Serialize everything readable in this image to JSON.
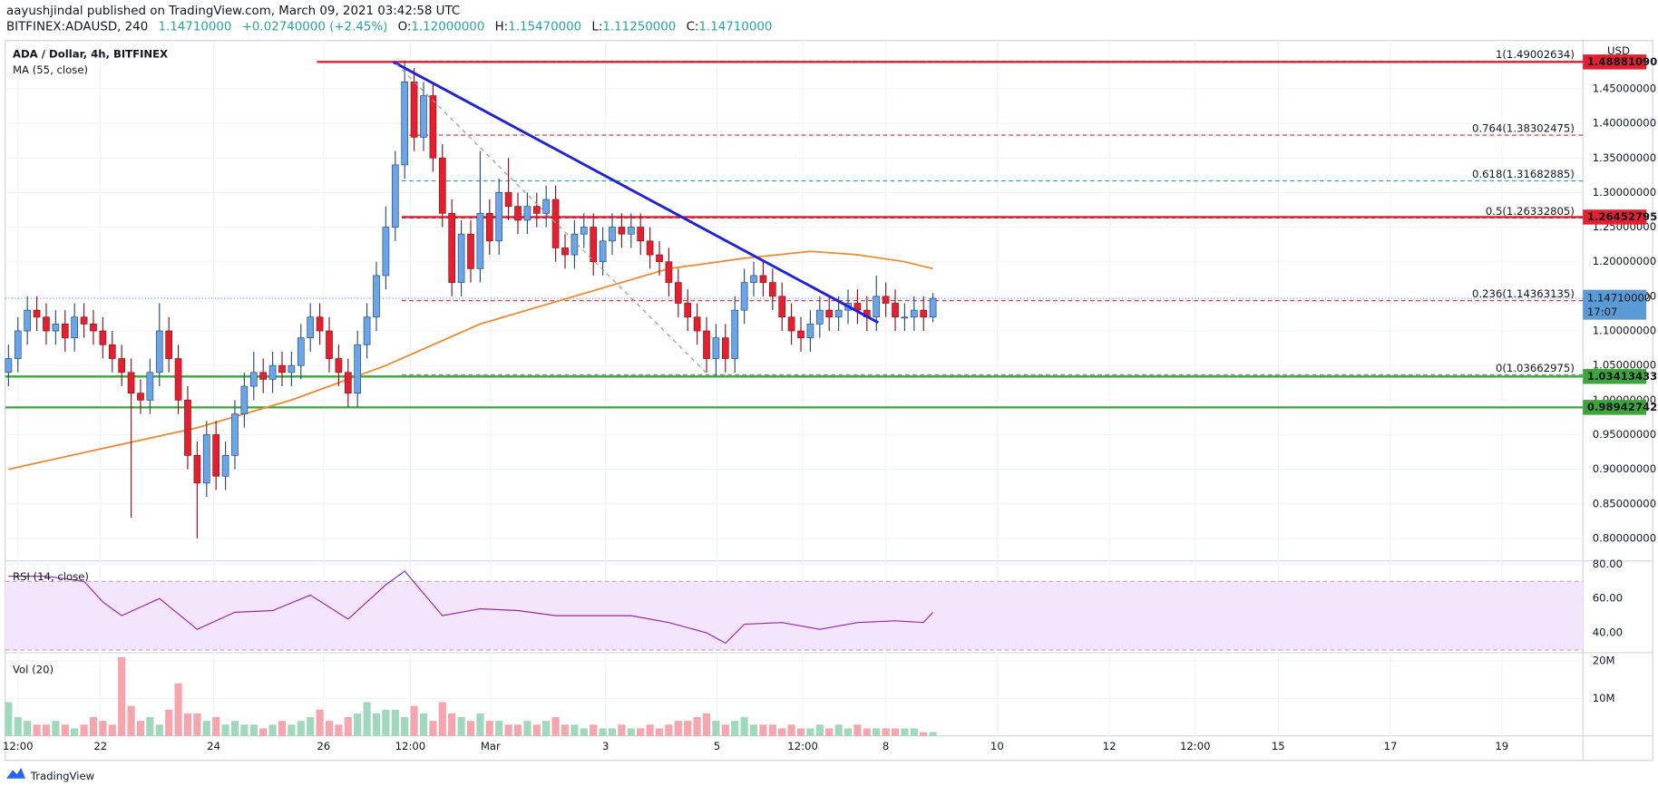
{
  "header": {
    "publisher": "aayushjindal published on TradingView.com, March 09, 2021 03:42:58 UTC",
    "symbol": "BITFINEX:ADAUSD, 240",
    "last": "1.14710000",
    "change": "+0.02740000 (+2.45%)",
    "ohlc": [
      {
        "label": "O:",
        "value": "1.12000000"
      },
      {
        "label": "H:",
        "value": "1.15470000"
      },
      {
        "label": "L:",
        "value": "1.11250000"
      },
      {
        "label": "C:",
        "value": "1.14710000"
      }
    ]
  },
  "chart_data": [
    {
      "type": "candlestick",
      "title": "ADA / Dollar, 4h, BITFINEX",
      "unit": "USD",
      "up_color": "#6ba5e7",
      "down_color": "#e3202f",
      "xlim": [
        -0.34,
        166.9
      ],
      "xticks": [
        {
          "value": 1,
          "label": "12:00"
        },
        {
          "value": 9.75,
          "label": "22"
        },
        {
          "value": 21.75,
          "label": "24"
        },
        {
          "value": 33.4,
          "label": "26"
        },
        {
          "value": 42.6,
          "label": "12:00"
        },
        {
          "value": 51.1,
          "label": "Mar"
        },
        {
          "value": 63.3,
          "label": "3"
        },
        {
          "value": 75.1,
          "label": "5"
        },
        {
          "value": 84.2,
          "label": "12:00"
        },
        {
          "value": 93,
          "label": "8"
        },
        {
          "value": 104.8,
          "label": "10"
        },
        {
          "value": 116.7,
          "label": "12"
        },
        {
          "value": 125.8,
          "label": "12:00"
        },
        {
          "value": 134.6,
          "label": "15"
        },
        {
          "value": 146.5,
          "label": "17"
        },
        {
          "value": 158.3,
          "label": "19"
        }
      ],
      "ylim": [
        0.7674,
        1.5198
      ],
      "yticks": [
        {
          "value": 0.8,
          "label": "0.80000000"
        },
        {
          "value": 0.85,
          "label": "0.85000000"
        },
        {
          "value": 0.9,
          "label": "0.90000000"
        },
        {
          "value": 0.95,
          "label": "0.95000000"
        },
        {
          "value": 1.0,
          "label": "1.00000000"
        },
        {
          "value": 1.05,
          "label": "1.05000000"
        },
        {
          "value": 1.1,
          "label": "1.10000000"
        },
        {
          "value": 1.15,
          "label": "1.15000000"
        },
        {
          "value": 1.2,
          "label": "1.20000000"
        },
        {
          "value": 1.25,
          "label": "1.25000000"
        },
        {
          "value": 1.3,
          "label": "1.30000000"
        },
        {
          "value": 1.35,
          "label": "1.35000000"
        },
        {
          "value": 1.4,
          "label": "1.40000000"
        },
        {
          "value": 1.45,
          "label": "1.45000000"
        }
      ],
      "open": [
        1.04,
        1.06,
        1.1,
        1.13,
        1.12,
        1.1,
        1.11,
        1.09,
        1.12,
        1.11,
        1.1,
        1.08,
        1.06,
        1.04,
        1.01,
        1.0,
        1.04,
        1.1,
        1.06,
        1.0,
        0.92,
        0.88,
        0.95,
        0.89,
        0.92,
        0.98,
        1.02,
        1.04,
        1.03,
        1.05,
        1.04,
        1.05,
        1.09,
        1.12,
        1.1,
        1.06,
        1.04,
        1.01,
        1.08,
        1.12,
        1.18,
        1.25,
        1.34,
        1.46,
        1.38,
        1.44,
        1.35,
        1.27,
        1.17,
        1.24,
        1.19,
        1.27,
        1.23,
        1.3,
        1.28,
        1.26,
        1.28,
        1.27,
        1.29,
        1.22,
        1.21,
        1.24,
        1.25,
        1.2,
        1.23,
        1.25,
        1.24,
        1.25,
        1.23,
        1.21,
        1.2,
        1.17,
        1.14,
        1.12,
        1.1,
        1.06,
        1.09,
        1.06,
        1.13,
        1.17,
        1.18,
        1.17,
        1.15,
        1.12,
        1.1,
        1.09,
        1.11,
        1.13,
        1.12,
        1.13,
        1.14,
        1.13,
        1.12,
        1.15,
        1.14,
        1.12,
        1.12,
        1.13,
        1.12
      ],
      "high": [
        1.08,
        1.12,
        1.15,
        1.15,
        1.14,
        1.13,
        1.13,
        1.14,
        1.14,
        1.13,
        1.12,
        1.1,
        1.08,
        1.06,
        1.03,
        1.06,
        1.14,
        1.12,
        1.08,
        1.02,
        0.94,
        0.97,
        0.97,
        0.94,
        1.0,
        1.04,
        1.07,
        1.06,
        1.07,
        1.07,
        1.07,
        1.11,
        1.14,
        1.14,
        1.12,
        1.08,
        1.06,
        1.1,
        1.14,
        1.2,
        1.28,
        1.36,
        1.49,
        1.48,
        1.46,
        1.46,
        1.37,
        1.29,
        1.26,
        1.26,
        1.36,
        1.29,
        1.32,
        1.35,
        1.3,
        1.3,
        1.3,
        1.31,
        1.31,
        1.24,
        1.26,
        1.27,
        1.27,
        1.25,
        1.27,
        1.27,
        1.27,
        1.27,
        1.25,
        1.23,
        1.22,
        1.19,
        1.16,
        1.14,
        1.12,
        1.11,
        1.11,
        1.15,
        1.19,
        1.2,
        1.2,
        1.19,
        1.17,
        1.14,
        1.12,
        1.13,
        1.15,
        1.15,
        1.15,
        1.16,
        1.16,
        1.15,
        1.18,
        1.17,
        1.16,
        1.14,
        1.15,
        1.15,
        1.1547
      ],
      "low": [
        1.02,
        1.04,
        1.08,
        1.1,
        1.08,
        1.08,
        1.07,
        1.07,
        1.09,
        1.08,
        1.06,
        1.04,
        1.02,
        0.83,
        0.98,
        0.98,
        1.02,
        1.04,
        0.98,
        0.9,
        0.8,
        0.86,
        0.87,
        0.87,
        0.9,
        0.96,
        1.0,
        1.01,
        1.01,
        1.02,
        1.02,
        1.03,
        1.07,
        1.08,
        1.04,
        1.02,
        0.99,
        0.99,
        1.06,
        1.1,
        1.16,
        1.23,
        1.32,
        1.36,
        1.36,
        1.33,
        1.25,
        1.15,
        1.15,
        1.17,
        1.17,
        1.21,
        1.21,
        1.26,
        1.24,
        1.24,
        1.25,
        1.25,
        1.2,
        1.19,
        1.19,
        1.22,
        1.18,
        1.18,
        1.21,
        1.22,
        1.22,
        1.21,
        1.19,
        1.18,
        1.15,
        1.12,
        1.1,
        1.08,
        1.04,
        1.035,
        1.04,
        1.04,
        1.11,
        1.15,
        1.15,
        1.13,
        1.1,
        1.08,
        1.07,
        1.07,
        1.09,
        1.1,
        1.1,
        1.11,
        1.11,
        1.1,
        1.1,
        1.12,
        1.1,
        1.1,
        1.1,
        1.1,
        1.1125
      ],
      "close": [
        1.06,
        1.1,
        1.13,
        1.12,
        1.1,
        1.11,
        1.09,
        1.12,
        1.11,
        1.1,
        1.08,
        1.06,
        1.04,
        1.01,
        1.0,
        1.04,
        1.1,
        1.06,
        1.0,
        0.92,
        0.88,
        0.95,
        0.89,
        0.92,
        0.98,
        1.02,
        1.04,
        1.03,
        1.05,
        1.04,
        1.05,
        1.09,
        1.12,
        1.1,
        1.06,
        1.04,
        1.01,
        1.08,
        1.12,
        1.18,
        1.25,
        1.34,
        1.46,
        1.38,
        1.44,
        1.35,
        1.27,
        1.17,
        1.24,
        1.19,
        1.27,
        1.23,
        1.3,
        1.28,
        1.26,
        1.28,
        1.27,
        1.29,
        1.22,
        1.21,
        1.24,
        1.25,
        1.2,
        1.23,
        1.25,
        1.24,
        1.25,
        1.23,
        1.21,
        1.2,
        1.17,
        1.14,
        1.12,
        1.1,
        1.06,
        1.09,
        1.06,
        1.13,
        1.17,
        1.18,
        1.17,
        1.15,
        1.12,
        1.1,
        1.09,
        1.11,
        1.13,
        1.12,
        1.13,
        1.14,
        1.13,
        1.12,
        1.15,
        1.14,
        1.12,
        1.12,
        1.13,
        1.12,
        1.1471
      ],
      "ma": {
        "name": "MA (55, close)",
        "color": "#f0892e",
        "x": [
          0,
          10,
          20,
          30,
          40,
          50,
          60,
          70,
          78,
          85,
          90,
          95,
          98
        ],
        "values": [
          0.9,
          0.93,
          0.96,
          1.0,
          1.05,
          1.11,
          1.15,
          1.19,
          1.205,
          1.215,
          1.21,
          1.2,
          1.19
        ]
      },
      "levels": [
        {
          "value": 1.4888109,
          "label": "1.48881090",
          "color": "#e3202f",
          "start": 32.7
        },
        {
          "value": 1.26452795,
          "label": "1.26452795",
          "color": "#e3202f",
          "start": 41.7
        },
        {
          "value": 1.03413433,
          "label": "1.03413433",
          "color": "#3aa63a",
          "start": -0.34
        },
        {
          "value": 0.98942742,
          "label": "0.98942742",
          "color": "#3aa63a",
          "start": -0.34
        }
      ],
      "fib": {
        "start": 41.7,
        "levels": [
          {
            "value": 1.49002634,
            "label": "1(1.49002634)",
            "color": "#5b8fd6"
          },
          {
            "value": 1.38302475,
            "label": "0.764(1.38302475)",
            "color": "#e3202f"
          },
          {
            "value": 1.31682885,
            "label": "0.618(1.31682885)",
            "color": "#26a69a"
          },
          {
            "value": 1.26332805,
            "label": "0.5(1.26332805)",
            "color": "#555555"
          },
          {
            "value": 1.14363135,
            "label": "0.236(1.14363135)",
            "color": "#e3202f"
          },
          {
            "value": 1.03662975,
            "label": "0(1.03662975)",
            "color": "#888888"
          }
        ]
      },
      "trendlines": [
        {
          "x": [
            40.8,
            92.2
          ],
          "values": [
            1.4888,
            1.112
          ],
          "color": "#1e22d8",
          "dashed": false
        },
        {
          "x": [
            41.1,
            74
          ],
          "values": [
            1.486,
            1.039
          ],
          "color": "#999999",
          "dashed": true
        }
      ],
      "last_price": {
        "value": 1.1471,
        "label": "1.14710000",
        "countdown": "17:07",
        "color": "#5b9bd5"
      }
    },
    {
      "type": "line",
      "title": "RSI (14, close)",
      "color": "#9c27b0",
      "band": [
        30,
        70
      ],
      "band_color": "#f3e5fb",
      "ylim": [
        28.4,
        81.9
      ],
      "yticks": [
        {
          "value": 80,
          "label": "80.00"
        },
        {
          "value": 60,
          "label": "60.00"
        },
        {
          "value": 40,
          "label": "40.00"
        }
      ],
      "x": [
        0,
        4,
        8,
        10,
        12,
        16,
        20,
        24,
        28,
        32,
        36,
        40,
        42,
        46,
        50,
        54,
        58,
        62,
        66,
        70,
        74,
        76,
        78,
        82,
        86,
        90,
        94,
        97,
        98
      ],
      "values": [
        73,
        73,
        70,
        58,
        50,
        60,
        42,
        52,
        53,
        62,
        48,
        68,
        76,
        50,
        54,
        53,
        50,
        50,
        50,
        46,
        40,
        34,
        45,
        46,
        42,
        46,
        47,
        46,
        52
      ]
    },
    {
      "type": "bar",
      "title": "Vol (20)",
      "up_color": "#9fd8bd",
      "down_color": "#f5a5ad",
      "ylim": [
        0,
        22.2
      ],
      "yticks": [
        {
          "value": 20,
          "label": "20M"
        },
        {
          "value": 10,
          "label": "10M"
        }
      ],
      "values": [
        9,
        5,
        4,
        3,
        3,
        4,
        3,
        2,
        3,
        5,
        4,
        3,
        21,
        8,
        4,
        5,
        3,
        7,
        14,
        6,
        6,
        4,
        5,
        3,
        4,
        3,
        3,
        2,
        3,
        4,
        3,
        4,
        5,
        7,
        4,
        3,
        5,
        6,
        9,
        6,
        7,
        7,
        5,
        8,
        6,
        4,
        9,
        6,
        5,
        4,
        6,
        4,
        4,
        3,
        3,
        4,
        3,
        4,
        5,
        3,
        3,
        2,
        3,
        2,
        2,
        3,
        2,
        2,
        3,
        2,
        3,
        4,
        4,
        5,
        6,
        4,
        3,
        4,
        5,
        3,
        3,
        3,
        2,
        3,
        2,
        2,
        3,
        2,
        3,
        2,
        3,
        2,
        2,
        2,
        2,
        2,
        2,
        1,
        1
      ]
    }
  ],
  "footer": {
    "brand": "TradingView"
  }
}
